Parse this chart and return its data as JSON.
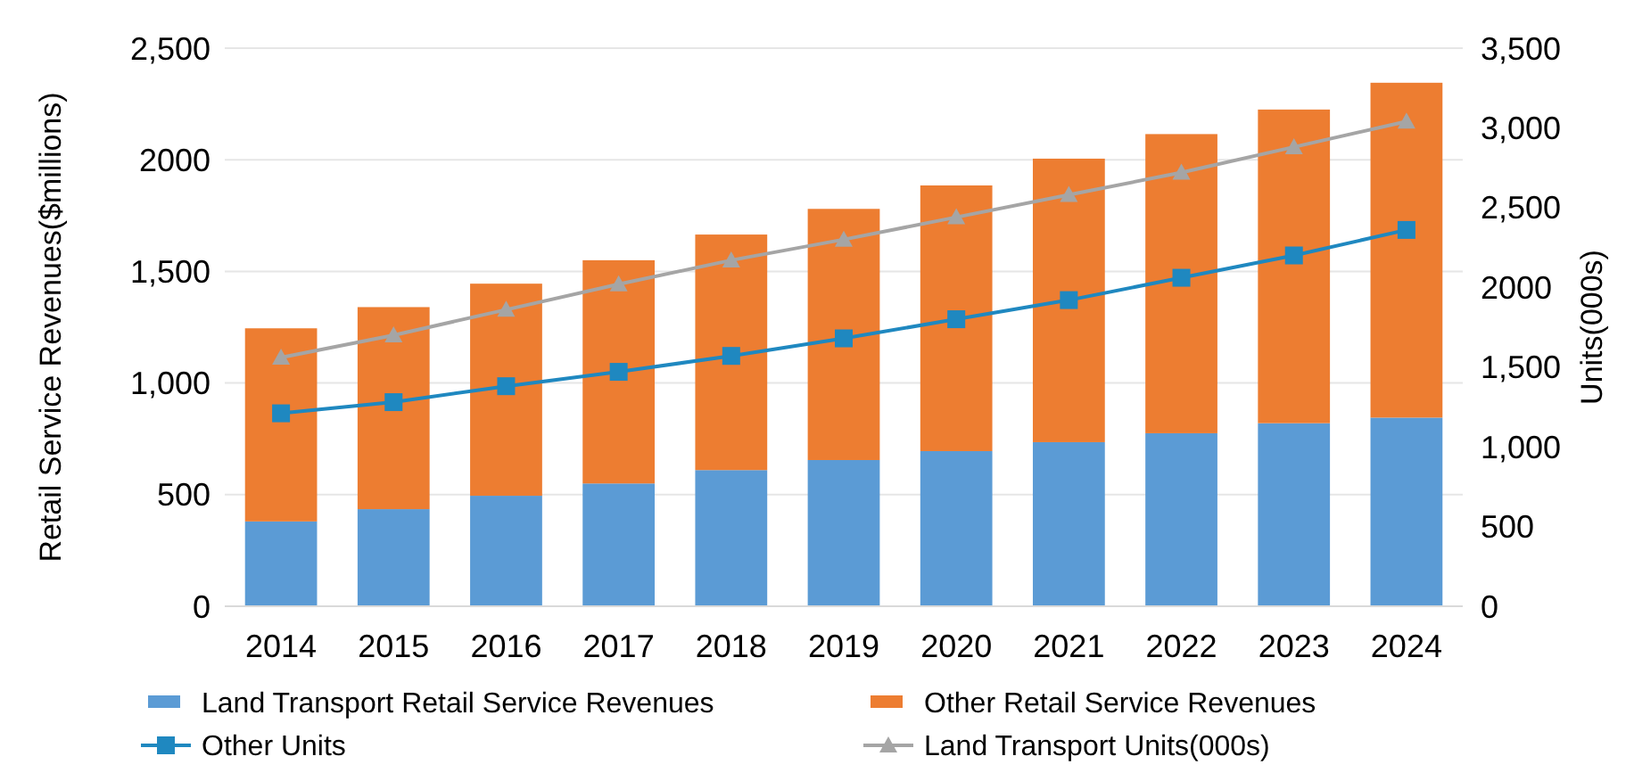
{
  "chart_data": {
    "type": "bar",
    "stacked": true,
    "ylabel": "Retail Service Revenues($millions)",
    "y2label": "Units(000s)",
    "categories": [
      "2014",
      "2015",
      "2016",
      "2017",
      "2018",
      "2019",
      "2020",
      "2021",
      "2022",
      "2023",
      "2024"
    ],
    "series": [
      {
        "name": "Land Transport Retail Service Revenues",
        "color": "#5b9bd5",
        "values": [
          380,
          435,
          495,
          550,
          610,
          655,
          695,
          735,
          775,
          820,
          845
        ]
      },
      {
        "name": "Other Retail Service Revenues",
        "color": "#ed7d31",
        "values": [
          865,
          905,
          950,
          1000,
          1055,
          1125,
          1190,
          1270,
          1340,
          1405,
          1500
        ]
      },
      {
        "name": "Other Units",
        "type": "line",
        "axis": "y2",
        "color": "#1f88c0",
        "marker": "square",
        "values": [
          1210,
          1280,
          1380,
          1470,
          1570,
          1680,
          1800,
          1920,
          2060,
          2200,
          2360
        ]
      },
      {
        "name": "Land Transport Units(000s)",
        "type": "line",
        "axis": "y2",
        "color": "#a5a5a5",
        "marker": "triangle",
        "values": [
          1560,
          1700,
          1860,
          2020,
          2170,
          2300,
          2440,
          2580,
          2720,
          2880,
          3040
        ]
      }
    ],
    "ylim": [
      0,
      2500
    ],
    "yticks": [
      0,
      500,
      {
        "value": 1000,
        "label": "1,000"
      },
      {
        "value": 1500,
        "label": "1,500"
      },
      2000,
      {
        "value": 2500,
        "label": "2,500"
      }
    ],
    "y2lim": [
      0,
      3500
    ],
    "y2ticks": [
      0,
      500,
      {
        "value": 1000,
        "label": "1,000"
      },
      {
        "value": 1500,
        "label": "1,500"
      },
      2000,
      {
        "value": 2500,
        "label": "2,500"
      },
      {
        "value": 3000,
        "label": "3,000"
      },
      {
        "value": 3500,
        "label": "3,500"
      }
    ],
    "grid": "y",
    "legend": "bottom",
    "line_style": "solid"
  }
}
